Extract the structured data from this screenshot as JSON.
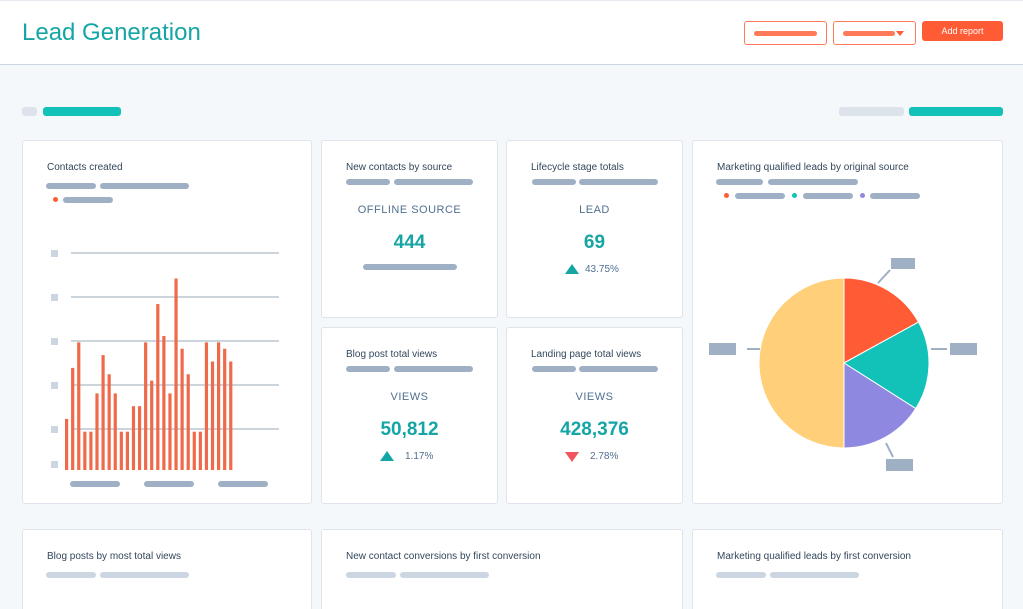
{
  "header": {
    "title": "Lead Generation",
    "add_report_label": "Add report"
  },
  "colors": {
    "accent": "#16a5a5",
    "primary_button": "#ff5c35",
    "bar": "#ef6a4a",
    "pie_orange": "#ff5c35",
    "pie_teal": "#12c2b8",
    "pie_purple": "#8f88e0",
    "pie_yellow": "#ffcf7a"
  },
  "cards": {
    "contacts_created": {
      "title": "Contacts created"
    },
    "new_contacts_by_source": {
      "title": "New contacts by source",
      "label": "OFFLINE SOURCE",
      "value": "444"
    },
    "lifecycle_stage_totals": {
      "title": "Lifecycle stage totals",
      "label": "LEAD",
      "value": "69",
      "delta": "43.75%",
      "trend": "up"
    },
    "mql_by_original_source": {
      "title": "Marketing qualified leads by original source"
    },
    "blog_post_total_views": {
      "title": "Blog post total views",
      "label": "VIEWS",
      "value": "50,812",
      "delta": "1.17%",
      "trend": "up"
    },
    "landing_page_total_views": {
      "title": "Landing page total views",
      "label": "VIEWS",
      "value": "428,376",
      "delta": "2.78%",
      "trend": "down"
    },
    "blog_posts_most_views": {
      "title": "Blog posts by most total views"
    },
    "new_contact_conversions": {
      "title": "New contact conversions by first conversion"
    },
    "mql_by_first_conversion": {
      "title": "Marketing qualified leads by first conversion"
    }
  },
  "chart_data": [
    {
      "type": "bar",
      "title": "Contacts created",
      "values": [
        8,
        16,
        20,
        6,
        6,
        12,
        18,
        15,
        12,
        6,
        6,
        10,
        10,
        20,
        14,
        26,
        21,
        12,
        30,
        19,
        15,
        6,
        6,
        20,
        17,
        20,
        19,
        17
      ],
      "ylim": [
        0,
        34
      ]
    },
    {
      "type": "pie",
      "title": "Marketing qualified leads by original source",
      "slices": [
        {
          "value": 17,
          "color": "#ff5c35"
        },
        {
          "value": 17,
          "color": "#12c2b8"
        },
        {
          "value": 16,
          "color": "#8f88e0"
        },
        {
          "value": 50,
          "color": "#ffcf7a"
        }
      ]
    }
  ]
}
